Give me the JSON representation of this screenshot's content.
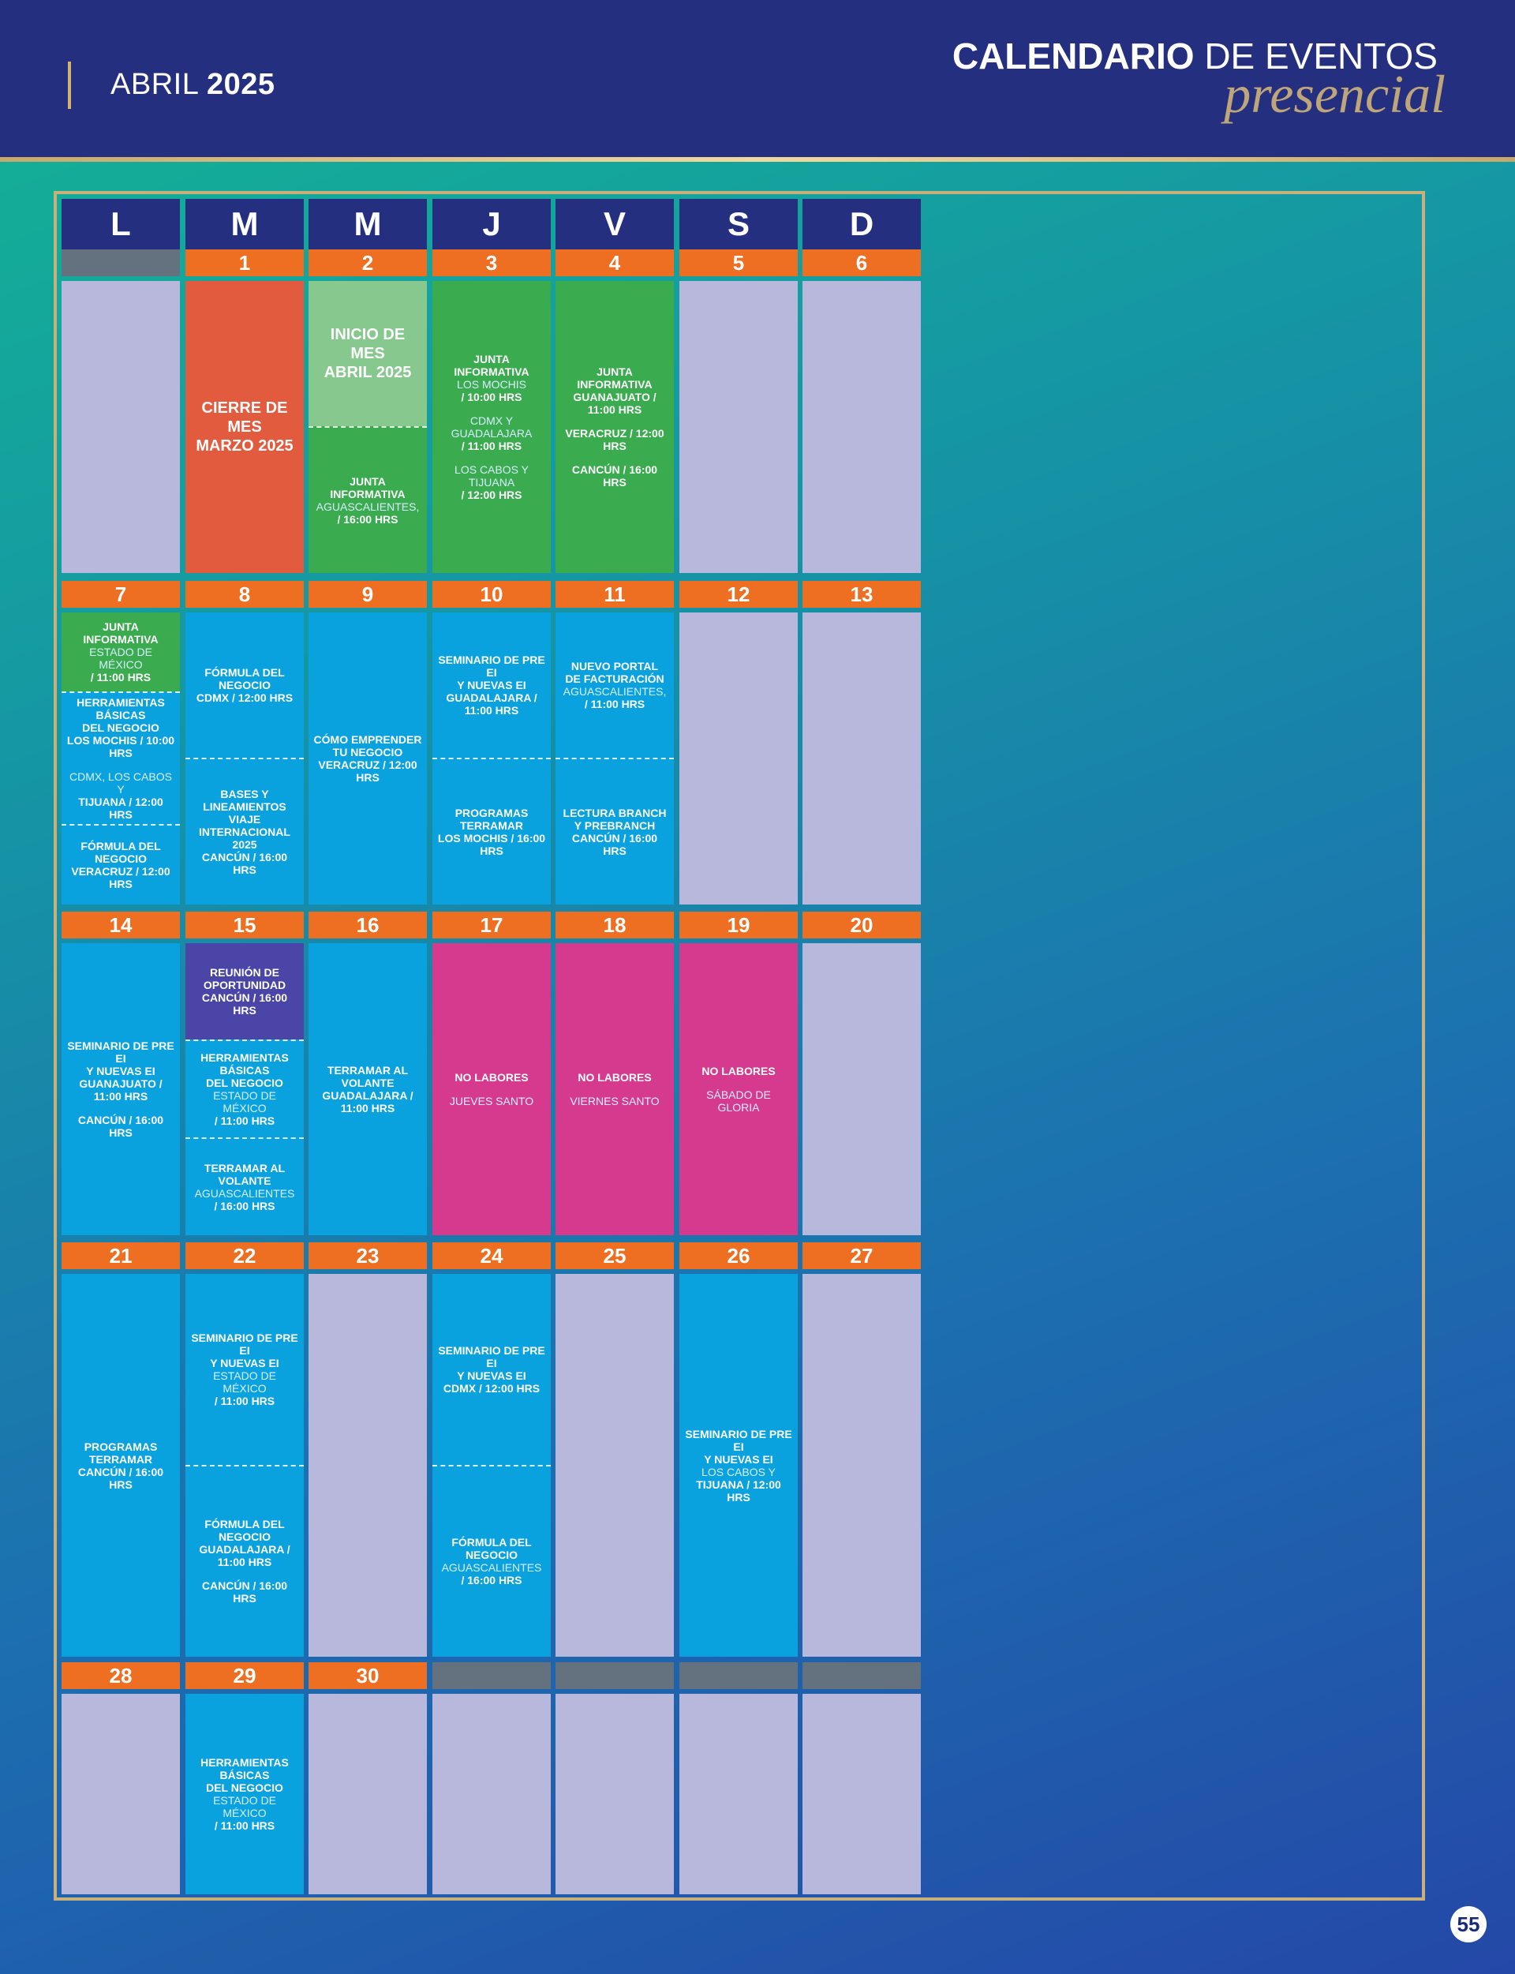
{
  "header": {
    "month": "ABRIL",
    "year": "2025",
    "title_bold": "CALENDARIO",
    "title_rest": "DE EVENTOS",
    "subtitle": "presencial"
  },
  "colors": {
    "orange": "#ee6f22",
    "blue": "#09a2df",
    "green": "#3aab4e",
    "lightgreen": "#86c88d",
    "red": "#e25b3f",
    "magenta": "#d53a8e",
    "purple": "#4a45a6",
    "gray": "#b7b8dc",
    "navy": "#252f80"
  },
  "weekdays": [
    "L",
    "M",
    "M",
    "J",
    "V",
    "S",
    "D"
  ],
  "weeks": [
    {
      "days": [
        {
          "n": "",
          "blank": true,
          "bg": "gray",
          "segs": []
        },
        {
          "n": "1",
          "bg": "red",
          "segs": [
            {
              "lines": [
                {
                  "t": "CIERRE DE MES",
                  "s": "big"
                },
                {
                  "t": "MARZO 2025",
                  "s": "big"
                }
              ]
            }
          ]
        },
        {
          "n": "2",
          "bg": "green",
          "segs": [
            {
              "bg": "lightgreen",
              "lines": [
                {
                  "t": "INICIO DE MES",
                  "s": "big"
                },
                {
                  "t": "ABRIL 2025",
                  "s": "big"
                }
              ]
            },
            {
              "lines": [
                {
                  "t": "JUNTA INFORMATIVA",
                  "s": "b"
                },
                {
                  "t": "AGUASCALIENTES,",
                  "s": "lt"
                },
                {
                  "t": "/ 16:00 HRS",
                  "s": "b"
                }
              ]
            }
          ]
        },
        {
          "n": "3",
          "bg": "green",
          "segs": [
            {
              "lines": [
                {
                  "t": "JUNTA INFORMATIVA",
                  "s": "b"
                },
                {
                  "t": "LOS MOCHIS",
                  "s": "lt"
                },
                {
                  "t": "/ 10:00 HRS",
                  "s": "b"
                },
                {
                  "t": "CDMX Y GUADALAJARA",
                  "s": "lt",
                  "gap": true
                },
                {
                  "t": "/ 11:00 HRS",
                  "s": "b"
                },
                {
                  "t": "LOS CABOS Y TIJUANA",
                  "s": "lt",
                  "gap": true
                },
                {
                  "t": "/ 12:00 HRS",
                  "s": "b"
                }
              ]
            }
          ]
        },
        {
          "n": "4",
          "bg": "green",
          "segs": [
            {
              "lines": [
                {
                  "t": "JUNTA INFORMATIVA",
                  "s": "b"
                },
                {
                  "t": "GUANAJUATO / 11:00 HRS",
                  "s": "b"
                },
                {
                  "t": "VERACRUZ / 12:00 HRS",
                  "s": "b",
                  "gap": true
                },
                {
                  "t": "CANCÚN / 16:00 HRS",
                  "s": "b",
                  "gap": true
                }
              ]
            }
          ]
        },
        {
          "n": "5",
          "bg": "gray",
          "segs": []
        },
        {
          "n": "6",
          "bg": "gray",
          "segs": []
        }
      ]
    },
    {
      "days": [
        {
          "n": "7",
          "bg": "blue",
          "segs": [
            {
              "bg": "green",
              "lines": [
                {
                  "t": "JUNTA INFORMATIVA",
                  "s": "b"
                },
                {
                  "t": "ESTADO DE MÉXICO",
                  "s": "lt"
                },
                {
                  "t": "/ 11:00 HRS",
                  "s": "b"
                }
              ]
            },
            {
              "lines": [
                {
                  "t": "HERRAMIENTAS BÁSICAS",
                  "s": "b"
                },
                {
                  "t": "DEL NEGOCIO",
                  "s": "b"
                },
                {
                  "t": "LOS MOCHIS / 10:00 HRS",
                  "s": "b"
                },
                {
                  "t": "CDMX, LOS CABOS Y",
                  "s": "lt",
                  "gap": true
                },
                {
                  "t": "TIJUANA / 12:00 HRS",
                  "s": "b"
                }
              ]
            },
            {
              "lines": [
                {
                  "t": "FÓRMULA DEL NEGOCIO",
                  "s": "b"
                },
                {
                  "t": "VERACRUZ / 12:00 HRS",
                  "s": "b"
                }
              ]
            }
          ]
        },
        {
          "n": "8",
          "bg": "blue",
          "segs": [
            {
              "lines": [
                {
                  "t": "FÓRMULA DEL NEGOCIO",
                  "s": "b"
                },
                {
                  "t": "CDMX / 12:00 HRS",
                  "s": "b"
                }
              ]
            },
            {
              "lines": [
                {
                  "t": "BASES Y LINEAMIENTOS",
                  "s": "b"
                },
                {
                  "t": "VIAJE INTERNACIONAL 2025",
                  "s": "b"
                },
                {
                  "t": "CANCÚN / 16:00 HRS",
                  "s": "b"
                }
              ]
            }
          ]
        },
        {
          "n": "9",
          "bg": "blue",
          "segs": [
            {
              "lines": [
                {
                  "t": "CÓMO EMPRENDER",
                  "s": "b"
                },
                {
                  "t": "TU NEGOCIO",
                  "s": "b"
                },
                {
                  "t": "VERACRUZ / 12:00 HRS",
                  "s": "b"
                }
              ]
            }
          ]
        },
        {
          "n": "10",
          "bg": "blue",
          "segs": [
            {
              "lines": [
                {
                  "t": "SEMINARIO DE PRE EI",
                  "s": "b"
                },
                {
                  "t": "Y NUEVAS EI",
                  "s": "b"
                },
                {
                  "t": "GUADALAJARA / 11:00 HRS",
                  "s": "b"
                }
              ]
            },
            {
              "lines": [
                {
                  "t": "PROGRAMAS TERRAMAR",
                  "s": "b"
                },
                {
                  "t": "LOS MOCHIS / 16:00 HRS",
                  "s": "b"
                }
              ]
            }
          ]
        },
        {
          "n": "11",
          "bg": "blue",
          "segs": [
            {
              "lines": [
                {
                  "t": "NUEVO PORTAL",
                  "s": "b"
                },
                {
                  "t": "DE FACTURACIÓN",
                  "s": "b"
                },
                {
                  "t": "AGUASCALIENTES,",
                  "s": "lt"
                },
                {
                  "t": "/ 11:00 HRS",
                  "s": "b"
                }
              ]
            },
            {
              "lines": [
                {
                  "t": "LECTURA BRANCH",
                  "s": "b"
                },
                {
                  "t": "Y PREBRANCH",
                  "s": "b"
                },
                {
                  "t": "CANCÚN / 16:00 HRS",
                  "s": "b"
                }
              ]
            }
          ]
        },
        {
          "n": "12",
          "bg": "gray",
          "segs": []
        },
        {
          "n": "13",
          "bg": "gray",
          "segs": []
        }
      ]
    },
    {
      "days": [
        {
          "n": "14",
          "bg": "blue",
          "segs": [
            {
              "lines": [
                {
                  "t": "SEMINARIO DE PRE EI",
                  "s": "b"
                },
                {
                  "t": "Y NUEVAS EI",
                  "s": "b"
                },
                {
                  "t": "GUANAJUATO / 11:00 HRS",
                  "s": "b"
                },
                {
                  "t": "CANCÚN / 16:00 HRS",
                  "s": "b",
                  "gap": true
                }
              ]
            }
          ]
        },
        {
          "n": "15",
          "bg": "blue",
          "segs": [
            {
              "bg": "purple",
              "lines": [
                {
                  "t": "REUNIÓN DE OPORTUNIDAD",
                  "s": "b"
                },
                {
                  "t": "CANCÚN / 16:00 HRS",
                  "s": "b"
                }
              ]
            },
            {
              "lines": [
                {
                  "t": "HERRAMIENTAS BÁSICAS",
                  "s": "b"
                },
                {
                  "t": "DEL NEGOCIO",
                  "s": "b"
                },
                {
                  "t": "ESTADO DE MÉXICO",
                  "s": "lt"
                },
                {
                  "t": "/ 11:00 HRS",
                  "s": "b"
                }
              ]
            },
            {
              "lines": [
                {
                  "t": "TERRAMAR AL VOLANTE",
                  "s": "b"
                },
                {
                  "t": "AGUASCALIENTES",
                  "s": "lt"
                },
                {
                  "t": "/ 16:00 HRS",
                  "s": "b"
                }
              ]
            }
          ]
        },
        {
          "n": "16",
          "bg": "blue",
          "segs": [
            {
              "lines": [
                {
                  "t": "TERRAMAR AL VOLANTE",
                  "s": "b"
                },
                {
                  "t": "GUADALAJARA / 11:00 HRS",
                  "s": "b"
                }
              ]
            }
          ]
        },
        {
          "n": "17",
          "bg": "magenta",
          "segs": [
            {
              "lines": [
                {
                  "t": "NO LABORES",
                  "s": "b"
                },
                {
                  "t": "JUEVES SANTO",
                  "s": "lt",
                  "gap": true
                }
              ]
            }
          ]
        },
        {
          "n": "18",
          "bg": "magenta",
          "segs": [
            {
              "lines": [
                {
                  "t": "NO LABORES",
                  "s": "b"
                },
                {
                  "t": "VIERNES SANTO",
                  "s": "lt",
                  "gap": true
                }
              ]
            }
          ]
        },
        {
          "n": "19",
          "bg": "magenta",
          "segs": [
            {
              "lines": [
                {
                  "t": "NO LABORES",
                  "s": "b"
                },
                {
                  "t": "SÁBADO DE GLORIA",
                  "s": "lt",
                  "gap": true
                }
              ]
            }
          ]
        },
        {
          "n": "20",
          "bg": "gray",
          "segs": []
        }
      ]
    },
    {
      "days": [
        {
          "n": "21",
          "bg": "blue",
          "segs": [
            {
              "lines": [
                {
                  "t": "PROGRAMAS TERRAMAR",
                  "s": "b"
                },
                {
                  "t": "CANCÚN / 16:00 HRS",
                  "s": "b"
                }
              ]
            }
          ]
        },
        {
          "n": "22",
          "bg": "blue",
          "segs": [
            {
              "lines": [
                {
                  "t": "SEMINARIO DE PRE EI",
                  "s": "b"
                },
                {
                  "t": "Y NUEVAS EI",
                  "s": "b"
                },
                {
                  "t": "ESTADO DE MÉXICO",
                  "s": "lt"
                },
                {
                  "t": "/ 11:00 HRS",
                  "s": "b"
                }
              ]
            },
            {
              "lines": [
                {
                  "t": "FÓRMULA DEL NEGOCIO",
                  "s": "b"
                },
                {
                  "t": "GUADALAJARA / 11:00 HRS",
                  "s": "b"
                },
                {
                  "t": "CANCÚN / 16:00 HRS",
                  "s": "b",
                  "gap": true
                }
              ]
            }
          ]
        },
        {
          "n": "23",
          "bg": "gray",
          "segs": []
        },
        {
          "n": "24",
          "bg": "blue",
          "segs": [
            {
              "lines": [
                {
                  "t": "SEMINARIO DE PRE EI",
                  "s": "b"
                },
                {
                  "t": "Y NUEVAS EI",
                  "s": "b"
                },
                {
                  "t": "CDMX / 12:00 HRS",
                  "s": "b"
                }
              ]
            },
            {
              "lines": [
                {
                  "t": "FÓRMULA DEL NEGOCIO",
                  "s": "b"
                },
                {
                  "t": "AGUASCALIENTES",
                  "s": "lt"
                },
                {
                  "t": "/ 16:00 HRS",
                  "s": "b"
                }
              ]
            }
          ]
        },
        {
          "n": "25",
          "bg": "gray",
          "segs": []
        },
        {
          "n": "26",
          "bg": "blue",
          "segs": [
            {
              "lines": [
                {
                  "t": "SEMINARIO DE PRE EI",
                  "s": "b"
                },
                {
                  "t": "Y NUEVAS EI",
                  "s": "b"
                },
                {
                  "t": "LOS CABOS Y",
                  "s": "lt"
                },
                {
                  "t": "TIJUANA / 12:00 HRS",
                  "s": "b"
                }
              ]
            }
          ]
        },
        {
          "n": "27",
          "bg": "gray",
          "segs": []
        }
      ]
    },
    {
      "days": [
        {
          "n": "28",
          "bg": "gray",
          "segs": []
        },
        {
          "n": "29",
          "bg": "blue",
          "segs": [
            {
              "lines": [
                {
                  "t": "HERRAMIENTAS BÁSICAS",
                  "s": "b"
                },
                {
                  "t": "DEL NEGOCIO",
                  "s": "b"
                },
                {
                  "t": "ESTADO DE MÉXICO",
                  "s": "lt"
                },
                {
                  "t": "/ 11:00 HRS",
                  "s": "b"
                }
              ]
            }
          ]
        },
        {
          "n": "30",
          "bg": "gray",
          "segs": []
        },
        {
          "n": "",
          "blank": true,
          "bg": "gray",
          "segs": []
        },
        {
          "n": "",
          "blank": true,
          "bg": "gray",
          "segs": []
        },
        {
          "n": "",
          "blank": true,
          "bg": "gray",
          "segs": []
        },
        {
          "n": "",
          "blank": true,
          "bg": "gray",
          "segs": []
        }
      ]
    }
  ],
  "page_number": "55"
}
